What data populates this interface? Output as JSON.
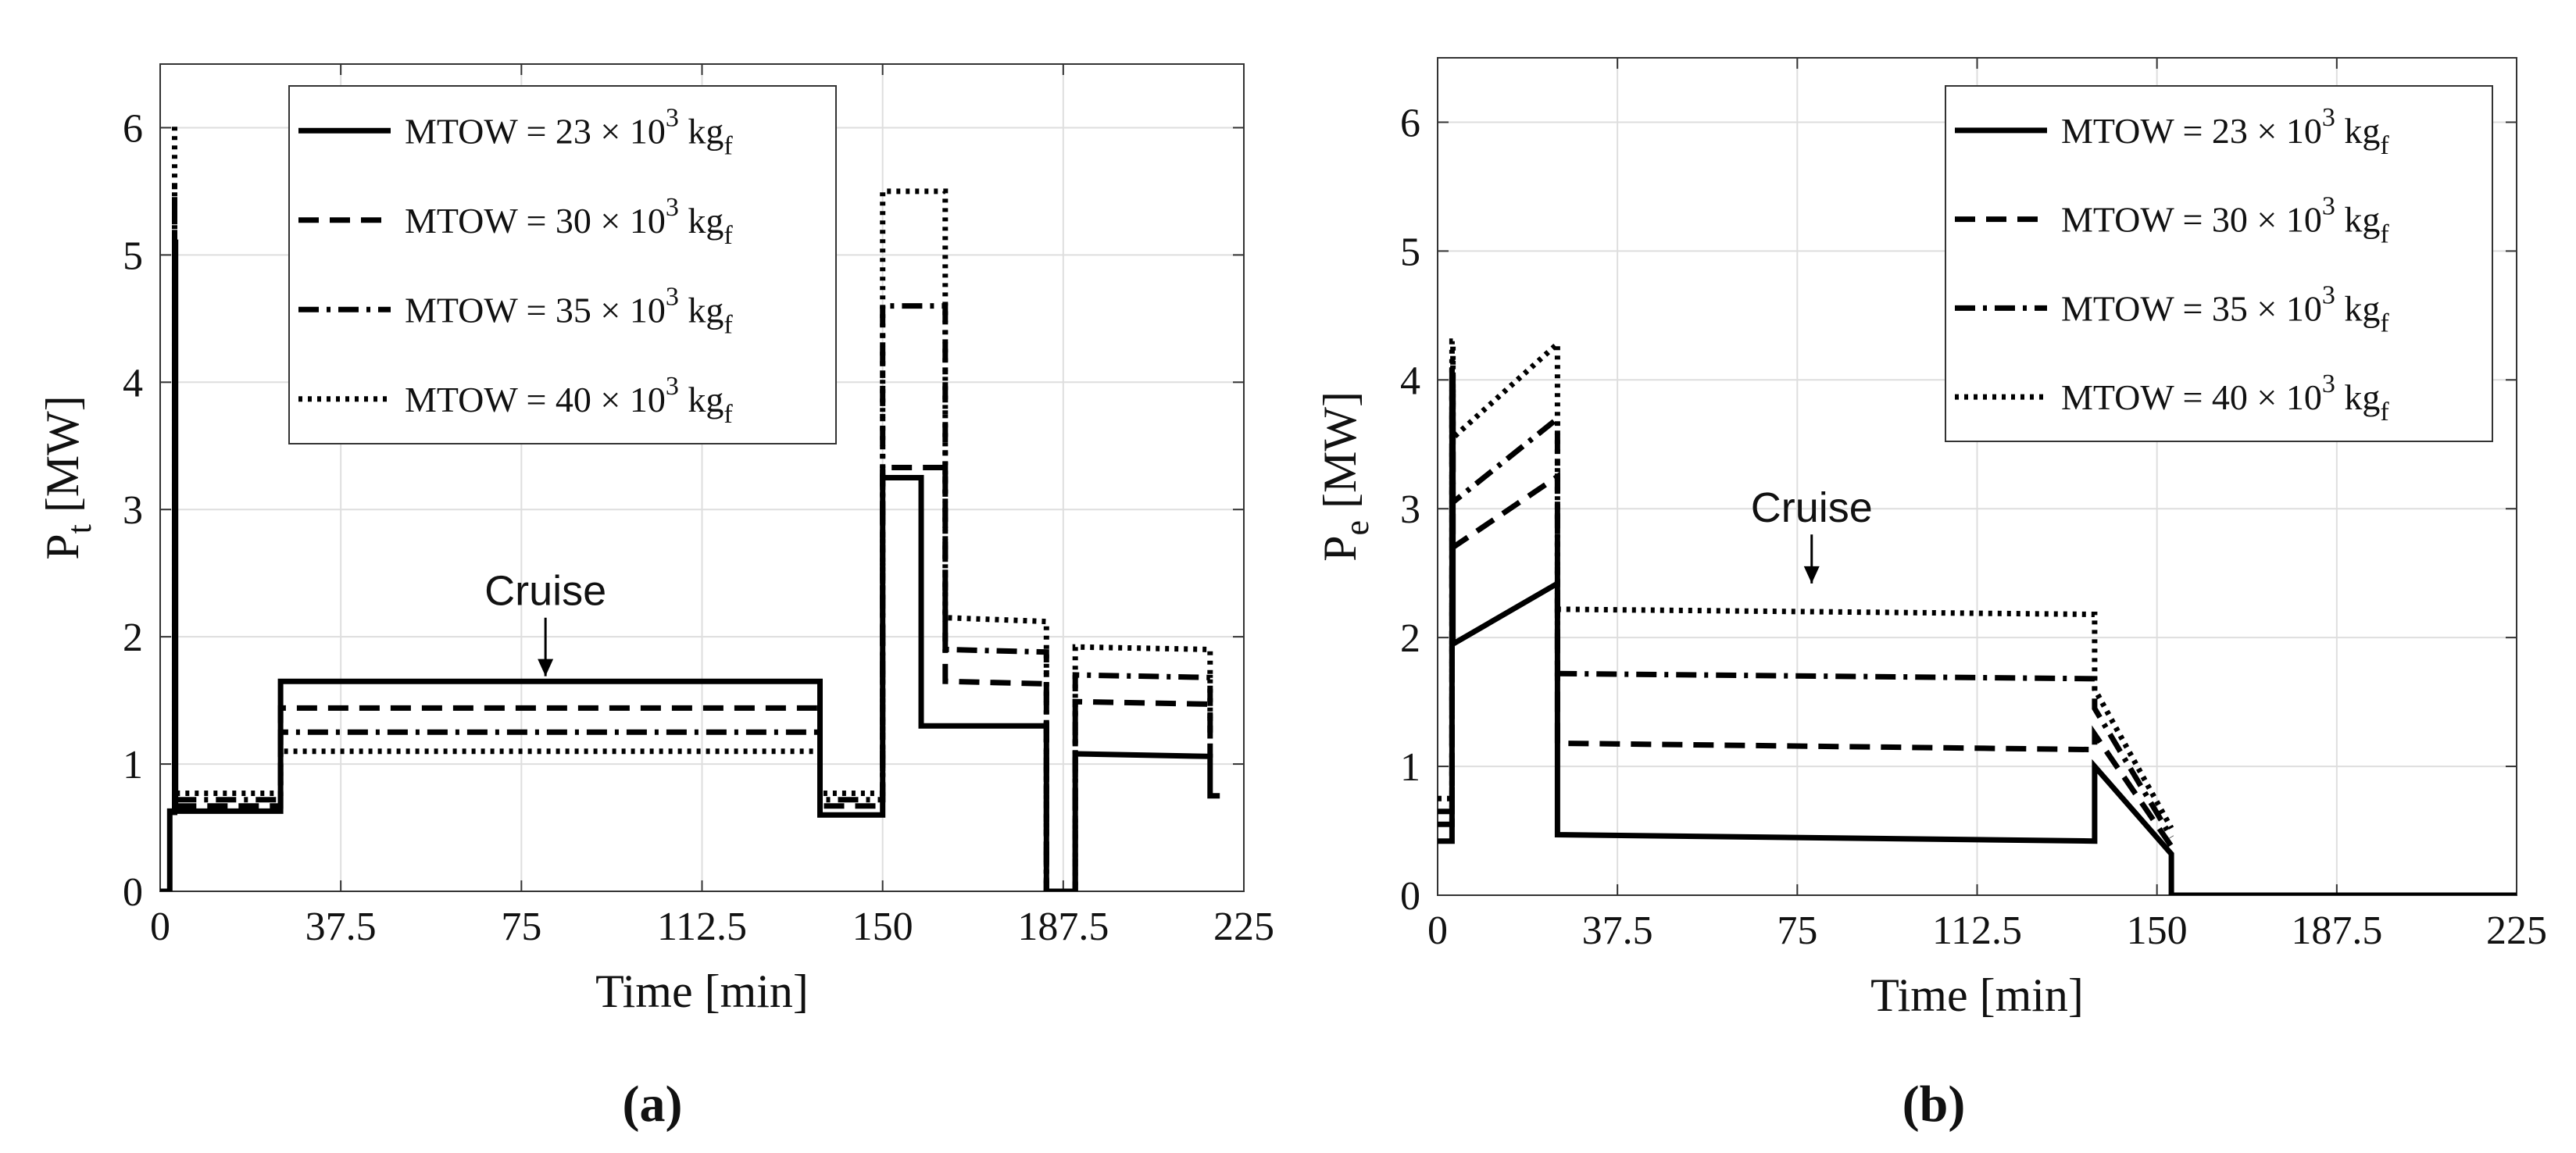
{
  "chart_data": [
    {
      "panel_label": "(a)",
      "type": "line",
      "xlabel": "Time [min]",
      "ylabel_main": "P",
      "ylabel_sub": "t",
      "ylabel_unit": " [MW]",
      "xlim": [
        0,
        225
      ],
      "ylim": [
        0,
        6.5
      ],
      "xticks": [
        0,
        37.5,
        75,
        112.5,
        150,
        187.5,
        225
      ],
      "xtick_labels": [
        "0",
        "37.5",
        "75",
        "112.5",
        "150",
        "187.5",
        "225"
      ],
      "yticks": [
        0,
        1,
        2,
        3,
        4,
        5,
        6
      ],
      "ytick_labels": [
        "0",
        "1",
        "2",
        "3",
        "4",
        "5",
        "6"
      ],
      "grid": true,
      "legend_position": "top-center",
      "annotation": {
        "text": "Cruise",
        "x": 80,
        "y": 1.69,
        "arrow_from_y": 2.15
      },
      "series": [
        {
          "name": "MTOW = 23",
          "style": "solid",
          "x": [
            0,
            2,
            2,
            3,
            3,
            3.2,
            3.2,
            25,
            25,
            137,
            137,
            150,
            150,
            152,
            152,
            158,
            158,
            164,
            164,
            184,
            184,
            190,
            190,
            218,
            218,
            220
          ],
          "y": [
            0,
            0,
            0.63,
            0.63,
            5.1,
            5.1,
            0.63,
            0.63,
            1.65,
            1.65,
            0.6,
            0.6,
            3.25,
            3.25,
            3.25,
            3.25,
            1.3,
            1.3,
            1.3,
            1.3,
            0,
            0,
            1.08,
            1.06,
            0.75,
            0.75
          ]
        },
        {
          "name": "MTOW = 30",
          "style": "dashed",
          "x": [
            3.3,
            25,
            25,
            137,
            137,
            150,
            150,
            158,
            158,
            163,
            163,
            184,
            184,
            190,
            190,
            218,
            218
          ],
          "y": [
            0.67,
            0.67,
            1.44,
            1.44,
            0.67,
            0.67,
            3.33,
            3.33,
            3.33,
            3.33,
            1.65,
            1.63,
            0,
            0,
            1.49,
            1.47,
            1.05
          ]
        },
        {
          "name": "MTOW = 35",
          "style": "dashdot",
          "x": [
            3.3,
            25,
            25,
            137,
            137,
            150,
            150,
            158,
            158,
            163,
            163,
            184,
            184,
            190,
            190,
            218,
            218
          ],
          "y": [
            0.72,
            0.72,
            1.25,
            1.25,
            0.72,
            0.72,
            4.6,
            4.6,
            4.6,
            4.6,
            1.9,
            1.88,
            0,
            0,
            1.7,
            1.68,
            1.2
          ]
        },
        {
          "name": "MTOW = 40",
          "style": "dotted",
          "x": [
            3.3,
            25,
            25,
            137,
            137,
            150,
            150,
            158,
            158,
            163,
            163,
            184,
            184,
            190,
            190,
            218,
            218
          ],
          "y": [
            0.77,
            0.77,
            1.1,
            1.1,
            0.77,
            0.77,
            5.5,
            5.5,
            5.5,
            5.5,
            2.15,
            2.12,
            0,
            0,
            1.92,
            1.9,
            1.3
          ]
        }
      ],
      "spikes": [
        {
          "x": 3,
          "y": 6.05,
          "style": "dotted"
        },
        {
          "x": 3,
          "y": 5.6,
          "style": "dashdot"
        },
        {
          "x": 3,
          "y": 5.3,
          "style": "dashed"
        }
      ],
      "legend": [
        {
          "label": "MTOW = 23 × 10",
          "sup": "3",
          "unit": " kg",
          "sub": "f",
          "style": "solid"
        },
        {
          "label": "MTOW = 30 × 10",
          "sup": "3",
          "unit": " kg",
          "sub": "f",
          "style": "dashed"
        },
        {
          "label": "MTOW = 35 × 10",
          "sup": "3",
          "unit": " kg",
          "sub": "f",
          "style": "dashdot"
        },
        {
          "label": "MTOW = 40 × 10",
          "sup": "3",
          "unit": " kg",
          "sub": "f",
          "style": "dotted"
        }
      ]
    },
    {
      "panel_label": "(b)",
      "type": "line",
      "xlabel": "Time [min]",
      "ylabel_main": "P",
      "ylabel_sub": "e",
      "ylabel_unit": " [MW]",
      "xlim": [
        0,
        225
      ],
      "ylim": [
        0,
        6.5
      ],
      "xticks": [
        0,
        37.5,
        75,
        112.5,
        150,
        187.5,
        225
      ],
      "xtick_labels": [
        "0",
        "37.5",
        "75",
        "112.5",
        "150",
        "187.5",
        "225"
      ],
      "yticks": [
        0,
        1,
        2,
        3,
        4,
        5,
        6
      ],
      "ytick_labels": [
        "0",
        "1",
        "2",
        "3",
        "4",
        "5",
        "6"
      ],
      "grid": true,
      "legend_position": "top-right",
      "annotation": {
        "text": "Cruise",
        "x": 78,
        "y": 2.42,
        "arrow_from_y": 2.8
      },
      "series": [
        {
          "name": "MTOW = 23",
          "style": "solid",
          "x": [
            0,
            3,
            3,
            3.2,
            3.2,
            25,
            25,
            137,
            137,
            153,
            153,
            225
          ],
          "y": [
            0.42,
            0.42,
            3.9,
            3.9,
            1.95,
            2.42,
            0.47,
            0.42,
            1.0,
            0.32,
            0,
            0
          ]
        },
        {
          "name": "MTOW = 30",
          "style": "dashed",
          "x": [
            0,
            3,
            3,
            3.2,
            3.2,
            25,
            25,
            137,
            137,
            153
          ],
          "y": [
            0.55,
            0.55,
            4.0,
            4.0,
            2.7,
            3.25,
            1.18,
            1.13,
            1.25,
            0.38
          ]
        },
        {
          "name": "MTOW = 35",
          "style": "dashdot",
          "x": [
            0,
            3,
            3,
            3.2,
            3.2,
            25,
            25,
            137,
            137,
            153
          ],
          "y": [
            0.65,
            0.65,
            4.15,
            4.15,
            3.05,
            3.7,
            1.72,
            1.68,
            1.45,
            0.45
          ]
        },
        {
          "name": "MTOW = 40",
          "style": "dotted",
          "x": [
            0,
            3,
            3,
            3.2,
            3.2,
            25,
            25,
            137,
            137,
            153
          ],
          "y": [
            0.75,
            0.75,
            4.3,
            4.3,
            3.55,
            4.28,
            2.22,
            2.18,
            1.6,
            0.52
          ]
        }
      ],
      "spikes": [],
      "legend": [
        {
          "label": "MTOW = 23 × 10",
          "sup": "3",
          "unit": " kg",
          "sub": "f",
          "style": "solid"
        },
        {
          "label": "MTOW = 30 × 10",
          "sup": "3",
          "unit": " kg",
          "sub": "f",
          "style": "dashed"
        },
        {
          "label": "MTOW = 35 × 10",
          "sup": "3",
          "unit": " kg",
          "sub": "f",
          "style": "dashdot"
        },
        {
          "label": "MTOW = 40 × 10",
          "sup": "3",
          "unit": " kg",
          "sub": "f",
          "style": "dotted"
        }
      ]
    }
  ]
}
